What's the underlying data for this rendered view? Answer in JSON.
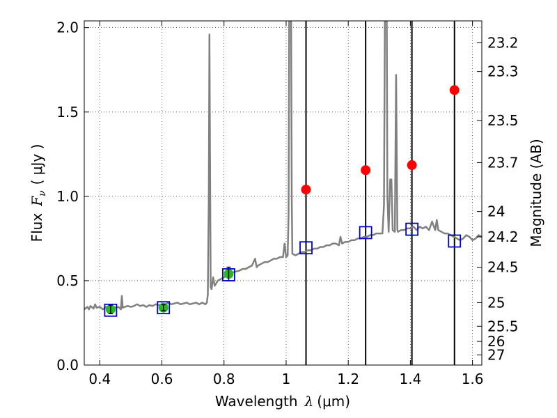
{
  "chart_data": {
    "type": "line",
    "xlabel_prefix": "Wavelength",
    "xlabel_symbol": "λ",
    "xlabel_unit": "(μm)",
    "ylabel_prefix": "Flux",
    "ylabel_symbol": "F",
    "ylabel_sub": "ν",
    "ylabel_unit": "( μJy )",
    "y2label": "Magnitude (AB)",
    "xlim": [
      0.35,
      1.63
    ],
    "ylim": [
      0.0,
      2.04
    ],
    "grid": true,
    "x_ticks": [
      0.4,
      0.6,
      0.8,
      1.0,
      1.2,
      1.4,
      1.6
    ],
    "x_tick_labels": [
      "0.4",
      "0.6",
      "0.8",
      "1",
      "1.2",
      "1.4",
      "1.6"
    ],
    "y_ticks": [
      0.0,
      0.5,
      1.0,
      1.5,
      2.0
    ],
    "y_tick_labels": [
      "0.0",
      "0.5",
      "1.0",
      "1.5",
      "2.0"
    ],
    "mag_ticks": [
      {
        "label": "23.2",
        "flux": 1.91
      },
      {
        "label": "23.3",
        "flux": 1.74
      },
      {
        "label": "23.5",
        "flux": 1.45
      },
      {
        "label": "23.7",
        "flux": 1.2
      },
      {
        "label": "24",
        "flux": 0.91
      },
      {
        "label": "24.2",
        "flux": 0.76
      },
      {
        "label": "24.5",
        "flux": 0.58
      },
      {
        "label": "25",
        "flux": 0.37
      },
      {
        "label": "25.5",
        "flux": 0.23
      },
      {
        "label": "26",
        "flux": 0.14
      },
      {
        "label": "27",
        "flux": 0.06
      }
    ],
    "vertical_lines_x": [
      1.064,
      1.256,
      1.405,
      1.542
    ],
    "spectrum": {
      "color": "#808080",
      "points": [
        [
          0.35,
          0.33
        ],
        [
          0.36,
          0.345
        ],
        [
          0.365,
          0.33
        ],
        [
          0.37,
          0.35
        ],
        [
          0.38,
          0.335
        ],
        [
          0.385,
          0.36
        ],
        [
          0.39,
          0.34
        ],
        [
          0.4,
          0.345
        ],
        [
          0.41,
          0.33
        ],
        [
          0.42,
          0.345
        ],
        [
          0.43,
          0.34
        ],
        [
          0.44,
          0.35
        ],
        [
          0.45,
          0.34
        ],
        [
          0.46,
          0.345
        ],
        [
          0.468,
          0.33
        ],
        [
          0.471,
          0.41
        ],
        [
          0.474,
          0.34
        ],
        [
          0.48,
          0.345
        ],
        [
          0.49,
          0.35
        ],
        [
          0.5,
          0.345
        ],
        [
          0.51,
          0.35
        ],
        [
          0.52,
          0.36
        ],
        [
          0.53,
          0.35
        ],
        [
          0.54,
          0.355
        ],
        [
          0.55,
          0.345
        ],
        [
          0.56,
          0.355
        ],
        [
          0.57,
          0.35
        ],
        [
          0.58,
          0.36
        ],
        [
          0.59,
          0.355
        ],
        [
          0.6,
          0.36
        ],
        [
          0.61,
          0.355
        ],
        [
          0.62,
          0.37
        ],
        [
          0.63,
          0.36
        ],
        [
          0.64,
          0.365
        ],
        [
          0.65,
          0.37
        ],
        [
          0.66,
          0.36
        ],
        [
          0.67,
          0.365
        ],
        [
          0.68,
          0.37
        ],
        [
          0.69,
          0.36
        ],
        [
          0.7,
          0.365
        ],
        [
          0.71,
          0.37
        ],
        [
          0.72,
          0.36
        ],
        [
          0.73,
          0.37
        ],
        [
          0.74,
          0.36
        ],
        [
          0.745,
          0.37
        ],
        [
          0.748,
          0.42
        ],
        [
          0.751,
          1.0
        ],
        [
          0.753,
          1.96
        ],
        [
          0.755,
          1.2
        ],
        [
          0.757,
          0.46
        ],
        [
          0.76,
          0.45
        ],
        [
          0.765,
          0.52
        ],
        [
          0.77,
          0.47
        ],
        [
          0.78,
          0.5
        ],
        [
          0.79,
          0.51
        ],
        [
          0.8,
          0.52
        ],
        [
          0.81,
          0.54
        ],
        [
          0.82,
          0.54
        ],
        [
          0.83,
          0.55
        ],
        [
          0.84,
          0.555
        ],
        [
          0.85,
          0.56
        ],
        [
          0.86,
          0.57
        ],
        [
          0.87,
          0.57
        ],
        [
          0.88,
          0.58
        ],
        [
          0.89,
          0.59
        ],
        [
          0.9,
          0.63
        ],
        [
          0.905,
          0.58
        ],
        [
          0.91,
          0.59
        ],
        [
          0.92,
          0.6
        ],
        [
          0.93,
          0.61
        ],
        [
          0.94,
          0.61
        ],
        [
          0.95,
          0.62
        ],
        [
          0.96,
          0.63
        ],
        [
          0.97,
          0.63
        ],
        [
          0.98,
          0.64
        ],
        [
          0.99,
          0.64
        ],
        [
          0.995,
          0.72
        ],
        [
          1.0,
          0.64
        ],
        [
          1.005,
          0.65
        ],
        [
          1.008,
          0.9
        ],
        [
          1.01,
          2.06
        ],
        [
          1.012,
          2.06
        ],
        [
          1.014,
          2.06
        ],
        [
          1.016,
          2.06
        ],
        [
          1.018,
          1.0
        ],
        [
          1.02,
          0.66
        ],
        [
          1.03,
          0.65
        ],
        [
          1.04,
          0.66
        ],
        [
          1.05,
          0.67
        ],
        [
          1.06,
          0.67
        ],
        [
          1.07,
          0.68
        ],
        [
          1.08,
          0.68
        ],
        [
          1.09,
          0.69
        ],
        [
          1.1,
          0.69
        ],
        [
          1.11,
          0.7
        ],
        [
          1.12,
          0.7
        ],
        [
          1.13,
          0.71
        ],
        [
          1.14,
          0.71
        ],
        [
          1.15,
          0.72
        ],
        [
          1.16,
          0.72
        ],
        [
          1.17,
          0.71
        ],
        [
          1.175,
          0.76
        ],
        [
          1.18,
          0.72
        ],
        [
          1.19,
          0.73
        ],
        [
          1.2,
          0.73
        ],
        [
          1.21,
          0.74
        ],
        [
          1.22,
          0.74
        ],
        [
          1.23,
          0.75
        ],
        [
          1.24,
          0.75
        ],
        [
          1.25,
          0.76
        ],
        [
          1.26,
          0.76
        ],
        [
          1.27,
          0.77
        ],
        [
          1.28,
          0.77
        ],
        [
          1.29,
          0.78
        ],
        [
          1.3,
          0.78
        ],
        [
          1.31,
          0.78
        ],
        [
          1.315,
          0.95
        ],
        [
          1.318,
          2.06
        ],
        [
          1.321,
          2.06
        ],
        [
          1.324,
          2.06
        ],
        [
          1.326,
          1.0
        ],
        [
          1.33,
          0.79
        ],
        [
          1.335,
          1.1
        ],
        [
          1.339,
          1.1
        ],
        [
          1.343,
          0.8
        ],
        [
          1.35,
          0.79
        ],
        [
          1.354,
          1.72
        ],
        [
          1.358,
          0.8
        ],
        [
          1.36,
          0.79
        ],
        [
          1.37,
          0.8
        ],
        [
          1.38,
          0.8
        ],
        [
          1.39,
          0.81
        ],
        [
          1.4,
          0.81
        ],
        [
          1.41,
          0.82
        ],
        [
          1.42,
          0.8
        ],
        [
          1.43,
          0.82
        ],
        [
          1.44,
          0.81
        ],
        [
          1.45,
          0.82
        ],
        [
          1.46,
          0.8
        ],
        [
          1.47,
          0.85
        ],
        [
          1.48,
          0.8
        ],
        [
          1.485,
          0.86
        ],
        [
          1.49,
          0.8
        ],
        [
          1.5,
          0.79
        ],
        [
          1.51,
          0.78
        ],
        [
          1.52,
          0.78
        ],
        [
          1.53,
          0.77
        ],
        [
          1.54,
          0.76
        ],
        [
          1.55,
          0.75
        ],
        [
          1.56,
          0.74
        ],
        [
          1.57,
          0.75
        ],
        [
          1.58,
          0.77
        ],
        [
          1.59,
          0.76
        ],
        [
          1.6,
          0.74
        ],
        [
          1.61,
          0.75
        ],
        [
          1.62,
          0.77
        ],
        [
          1.63,
          0.76
        ]
      ]
    },
    "model_squares": {
      "color": "#0000cc",
      "points": [
        [
          0.435,
          0.325
        ],
        [
          0.605,
          0.34
        ],
        [
          0.815,
          0.535
        ],
        [
          1.064,
          0.695
        ],
        [
          1.256,
          0.785
        ],
        [
          1.405,
          0.805
        ],
        [
          1.542,
          0.735
        ]
      ]
    },
    "observed_points": {
      "color": "#22bb22",
      "points": [
        {
          "x": 0.435,
          "y": 0.33,
          "err": 0.025
        },
        {
          "x": 0.605,
          "y": 0.34,
          "err": 0.018
        },
        {
          "x": 0.815,
          "y": 0.54,
          "err": 0.04
        }
      ]
    },
    "upper_points": {
      "color": "#ff0000",
      "points": [
        [
          1.064,
          1.04
        ],
        [
          1.256,
          1.155
        ],
        [
          1.405,
          1.185
        ],
        [
          1.542,
          1.63
        ]
      ]
    }
  }
}
